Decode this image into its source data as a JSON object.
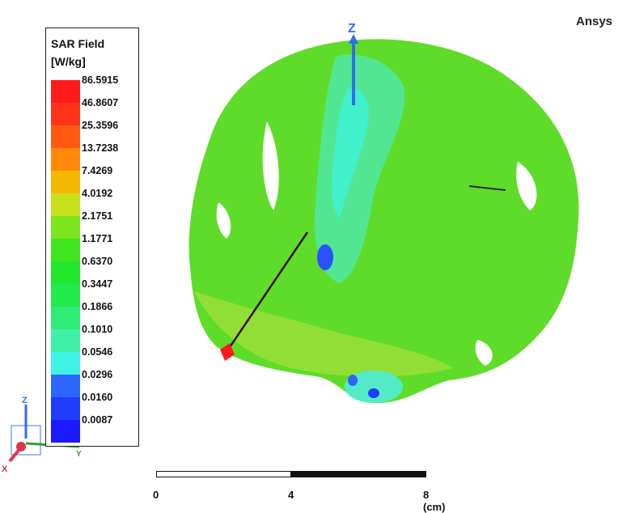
{
  "brand": "Ansys",
  "legend": {
    "title": "SAR Field",
    "unit": "[W/kg]",
    "levels": [
      {
        "label": "86.5915",
        "color": "#ff1a1a"
      },
      {
        "label": "46.8607",
        "color": "#ff3318"
      },
      {
        "label": "25.3596",
        "color": "#ff5a10"
      },
      {
        "label": "13.7238",
        "color": "#ff8a0a"
      },
      {
        "label": "7.4269",
        "color": "#f5b800"
      },
      {
        "label": "4.0192",
        "color": "#c8e01c"
      },
      {
        "label": "2.1751",
        "color": "#7ce51e"
      },
      {
        "label": "1.1771",
        "color": "#3fe61e"
      },
      {
        "label": "0.6370",
        "color": "#22e82c"
      },
      {
        "label": "0.3447",
        "color": "#20ea4c"
      },
      {
        "label": "0.1866",
        "color": "#2eec76"
      },
      {
        "label": "0.1010",
        "color": "#40f0a8"
      },
      {
        "label": "0.0546",
        "color": "#3ef2e6"
      },
      {
        "label": "0.0296",
        "color": "#2c66ff"
      },
      {
        "label": "0.0160",
        "color": "#1f3cff"
      },
      {
        "label": "0.0087",
        "color": "#1c18ff"
      }
    ]
  },
  "axes": {
    "z_label": "Z",
    "x_label": "X",
    "y_label": "Y"
  },
  "scale": {
    "t0": "0",
    "t1": "4",
    "t2": "8 (cm)"
  }
}
